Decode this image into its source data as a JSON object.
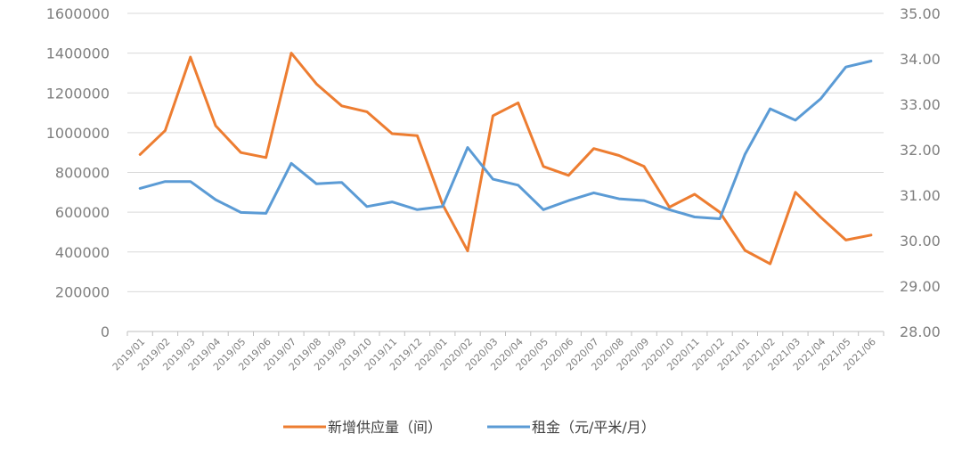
{
  "chart_data": {
    "type": "line",
    "categories": [
      "2019/01",
      "2019/02",
      "2019/03",
      "2019/04",
      "2019/05",
      "2019/06",
      "2019/07",
      "2019/08",
      "2019/09",
      "2019/10",
      "2019/11",
      "2019/12",
      "2020/01",
      "2020/02",
      "2020/03",
      "2020/04",
      "2020/05",
      "2020/06",
      "2020/07",
      "2020/08",
      "2020/09",
      "2020/10",
      "2020/11",
      "2020/12",
      "2021/01",
      "2021/02",
      "2021/03",
      "2021/04",
      "2021/05",
      "2021/06"
    ],
    "series": [
      {
        "name": "新增供应量（间）",
        "axis": "left",
        "color": "#ED7D31",
        "values": [
          890000,
          1010000,
          1380000,
          1035000,
          900000,
          875000,
          1400000,
          1245000,
          1135000,
          1105000,
          995000,
          985000,
          640000,
          405000,
          1085000,
          1150000,
          830000,
          785000,
          920000,
          885000,
          830000,
          625000,
          690000,
          600000,
          408000,
          340000,
          700000,
          575000,
          460000,
          485000
        ]
      },
      {
        "name": "租金（元/平米/月）",
        "axis": "right",
        "color": "#5B9BD5",
        "values": [
          31.15,
          31.3,
          31.3,
          30.9,
          30.62,
          30.6,
          31.7,
          31.25,
          31.28,
          30.75,
          30.85,
          30.68,
          30.75,
          32.05,
          31.35,
          31.22,
          30.68,
          30.88,
          31.05,
          30.92,
          30.88,
          30.68,
          30.52,
          30.48,
          31.9,
          32.9,
          32.65,
          33.12,
          33.82,
          33.95
        ]
      }
    ],
    "y_left": {
      "lim": [
        0,
        1600000
      ],
      "ticks": [
        "0",
        "200000",
        "400000",
        "600000",
        "800000",
        "1000000",
        "1200000",
        "1400000",
        "1600000"
      ]
    },
    "y_right": {
      "lim": [
        28,
        35
      ],
      "ticks": [
        "28.00",
        "29.00",
        "30.00",
        "31.00",
        "32.00",
        "33.00",
        "34.00",
        "35.00"
      ]
    },
    "grid": true,
    "legend_position": "bottom"
  }
}
